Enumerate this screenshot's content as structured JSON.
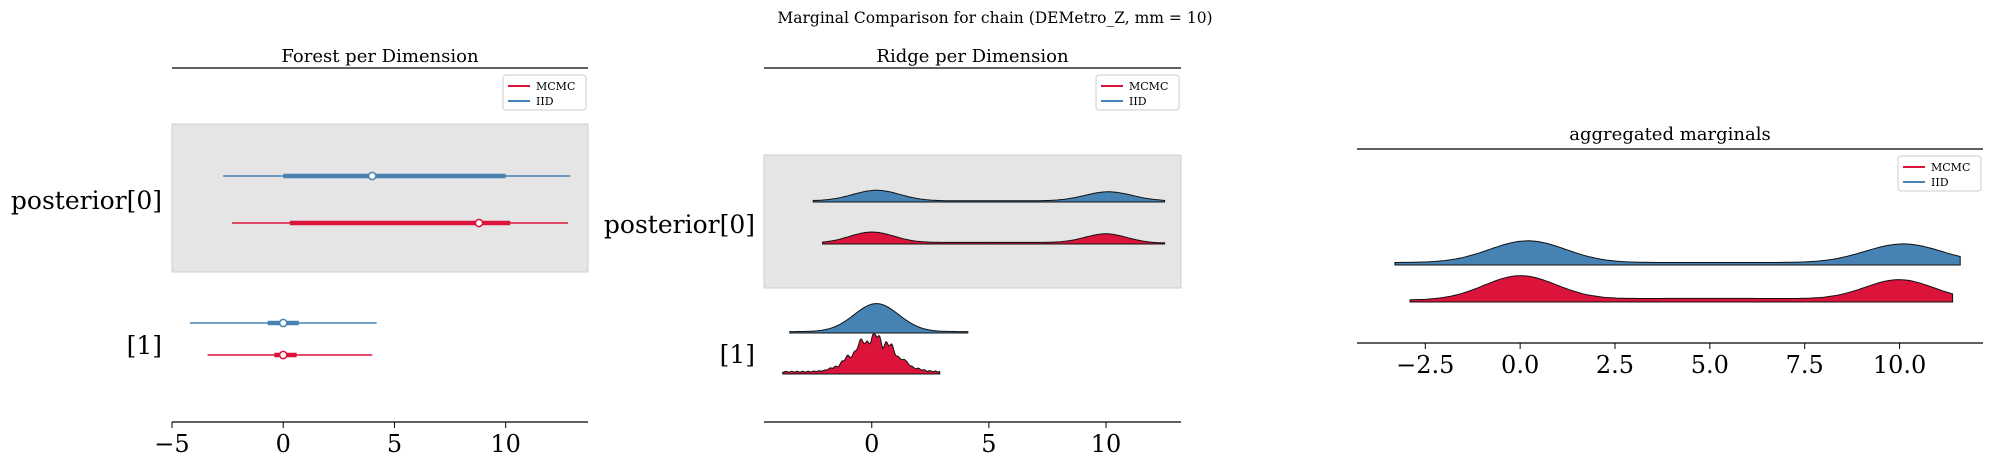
{
  "figure": {
    "suptitle": "Marginal Comparison for chain (DEMetro_Z, mm = 10)"
  },
  "colors": {
    "mcmc": "#dc143c",
    "iid": "#4682b4",
    "band": "#e5e5e5",
    "axis": "#000000"
  },
  "chart_data": [
    {
      "type": "forest",
      "title": "Forest per Dimension",
      "xlim": [
        -5,
        13.7
      ],
      "xticks": [
        -5,
        0,
        5,
        10
      ],
      "xticklabels": [
        "−5",
        "0",
        "5",
        "10"
      ],
      "rows": [
        "posterior[0]",
        "[1]"
      ],
      "legend": {
        "position": "top-right",
        "entries": [
          {
            "label": "MCMC",
            "color": "#dc143c"
          },
          {
            "label": "IID",
            "color": "#4682b4"
          }
        ]
      },
      "series": [
        {
          "name": "MCMC",
          "row": 0,
          "min": -2.3,
          "q25": 0.3,
          "median": 8.8,
          "q75": 10.2,
          "max": 12.8
        },
        {
          "name": "IID",
          "row": 0,
          "min": -2.7,
          "q25": 0.0,
          "median": 4.0,
          "q75": 10.0,
          "max": 12.9
        },
        {
          "name": "MCMC",
          "row": 1,
          "min": -3.4,
          "q25": -0.4,
          "median": 0.0,
          "q75": 0.6,
          "max": 4.0
        },
        {
          "name": "IID",
          "row": 1,
          "min": -4.2,
          "q25": -0.7,
          "median": 0.0,
          "q75": 0.7,
          "max": 4.2
        }
      ]
    },
    {
      "type": "ridge",
      "title": "Ridge per Dimension",
      "xlim": [
        -4.6,
        13.2
      ],
      "xticks": [
        0,
        5,
        10
      ],
      "xticklabels": [
        "0",
        "5",
        "10"
      ],
      "rows": [
        "posterior[0]",
        "[1]"
      ],
      "legend": {
        "position": "top-right",
        "entries": [
          {
            "label": "MCMC",
            "color": "#dc143c"
          },
          {
            "label": "IID",
            "color": "#4682b4"
          }
        ]
      },
      "series": [
        {
          "name": "IID",
          "row": 0,
          "xmin": -2.5,
          "xmax": 12.5
        },
        {
          "name": "MCMC",
          "row": 0,
          "xmin": -2.1,
          "xmax": 12.5
        },
        {
          "name": "IID",
          "row": 1,
          "xmin": -3.5,
          "xmax": 4.1
        },
        {
          "name": "MCMC",
          "row": 1,
          "xmin": -3.8,
          "xmax": 2.9
        }
      ]
    },
    {
      "type": "ridge",
      "title": "aggregated marginals",
      "xlim": [
        -4.3,
        12.2
      ],
      "xticks": [
        -2.5,
        0.0,
        2.5,
        5.0,
        7.5,
        10.0
      ],
      "xticklabels": [
        "−2.5",
        "0.0",
        "2.5",
        "5.0",
        "7.5",
        "10.0"
      ],
      "legend": {
        "position": "top-right",
        "entries": [
          {
            "label": "MCMC",
            "color": "#dc143c"
          },
          {
            "label": "IID",
            "color": "#4682b4"
          }
        ]
      },
      "series": [
        {
          "name": "IID",
          "xmin": -3.3,
          "xmax": 11.6
        },
        {
          "name": "MCMC",
          "xmin": -2.9,
          "xmax": 11.4
        }
      ]
    }
  ]
}
